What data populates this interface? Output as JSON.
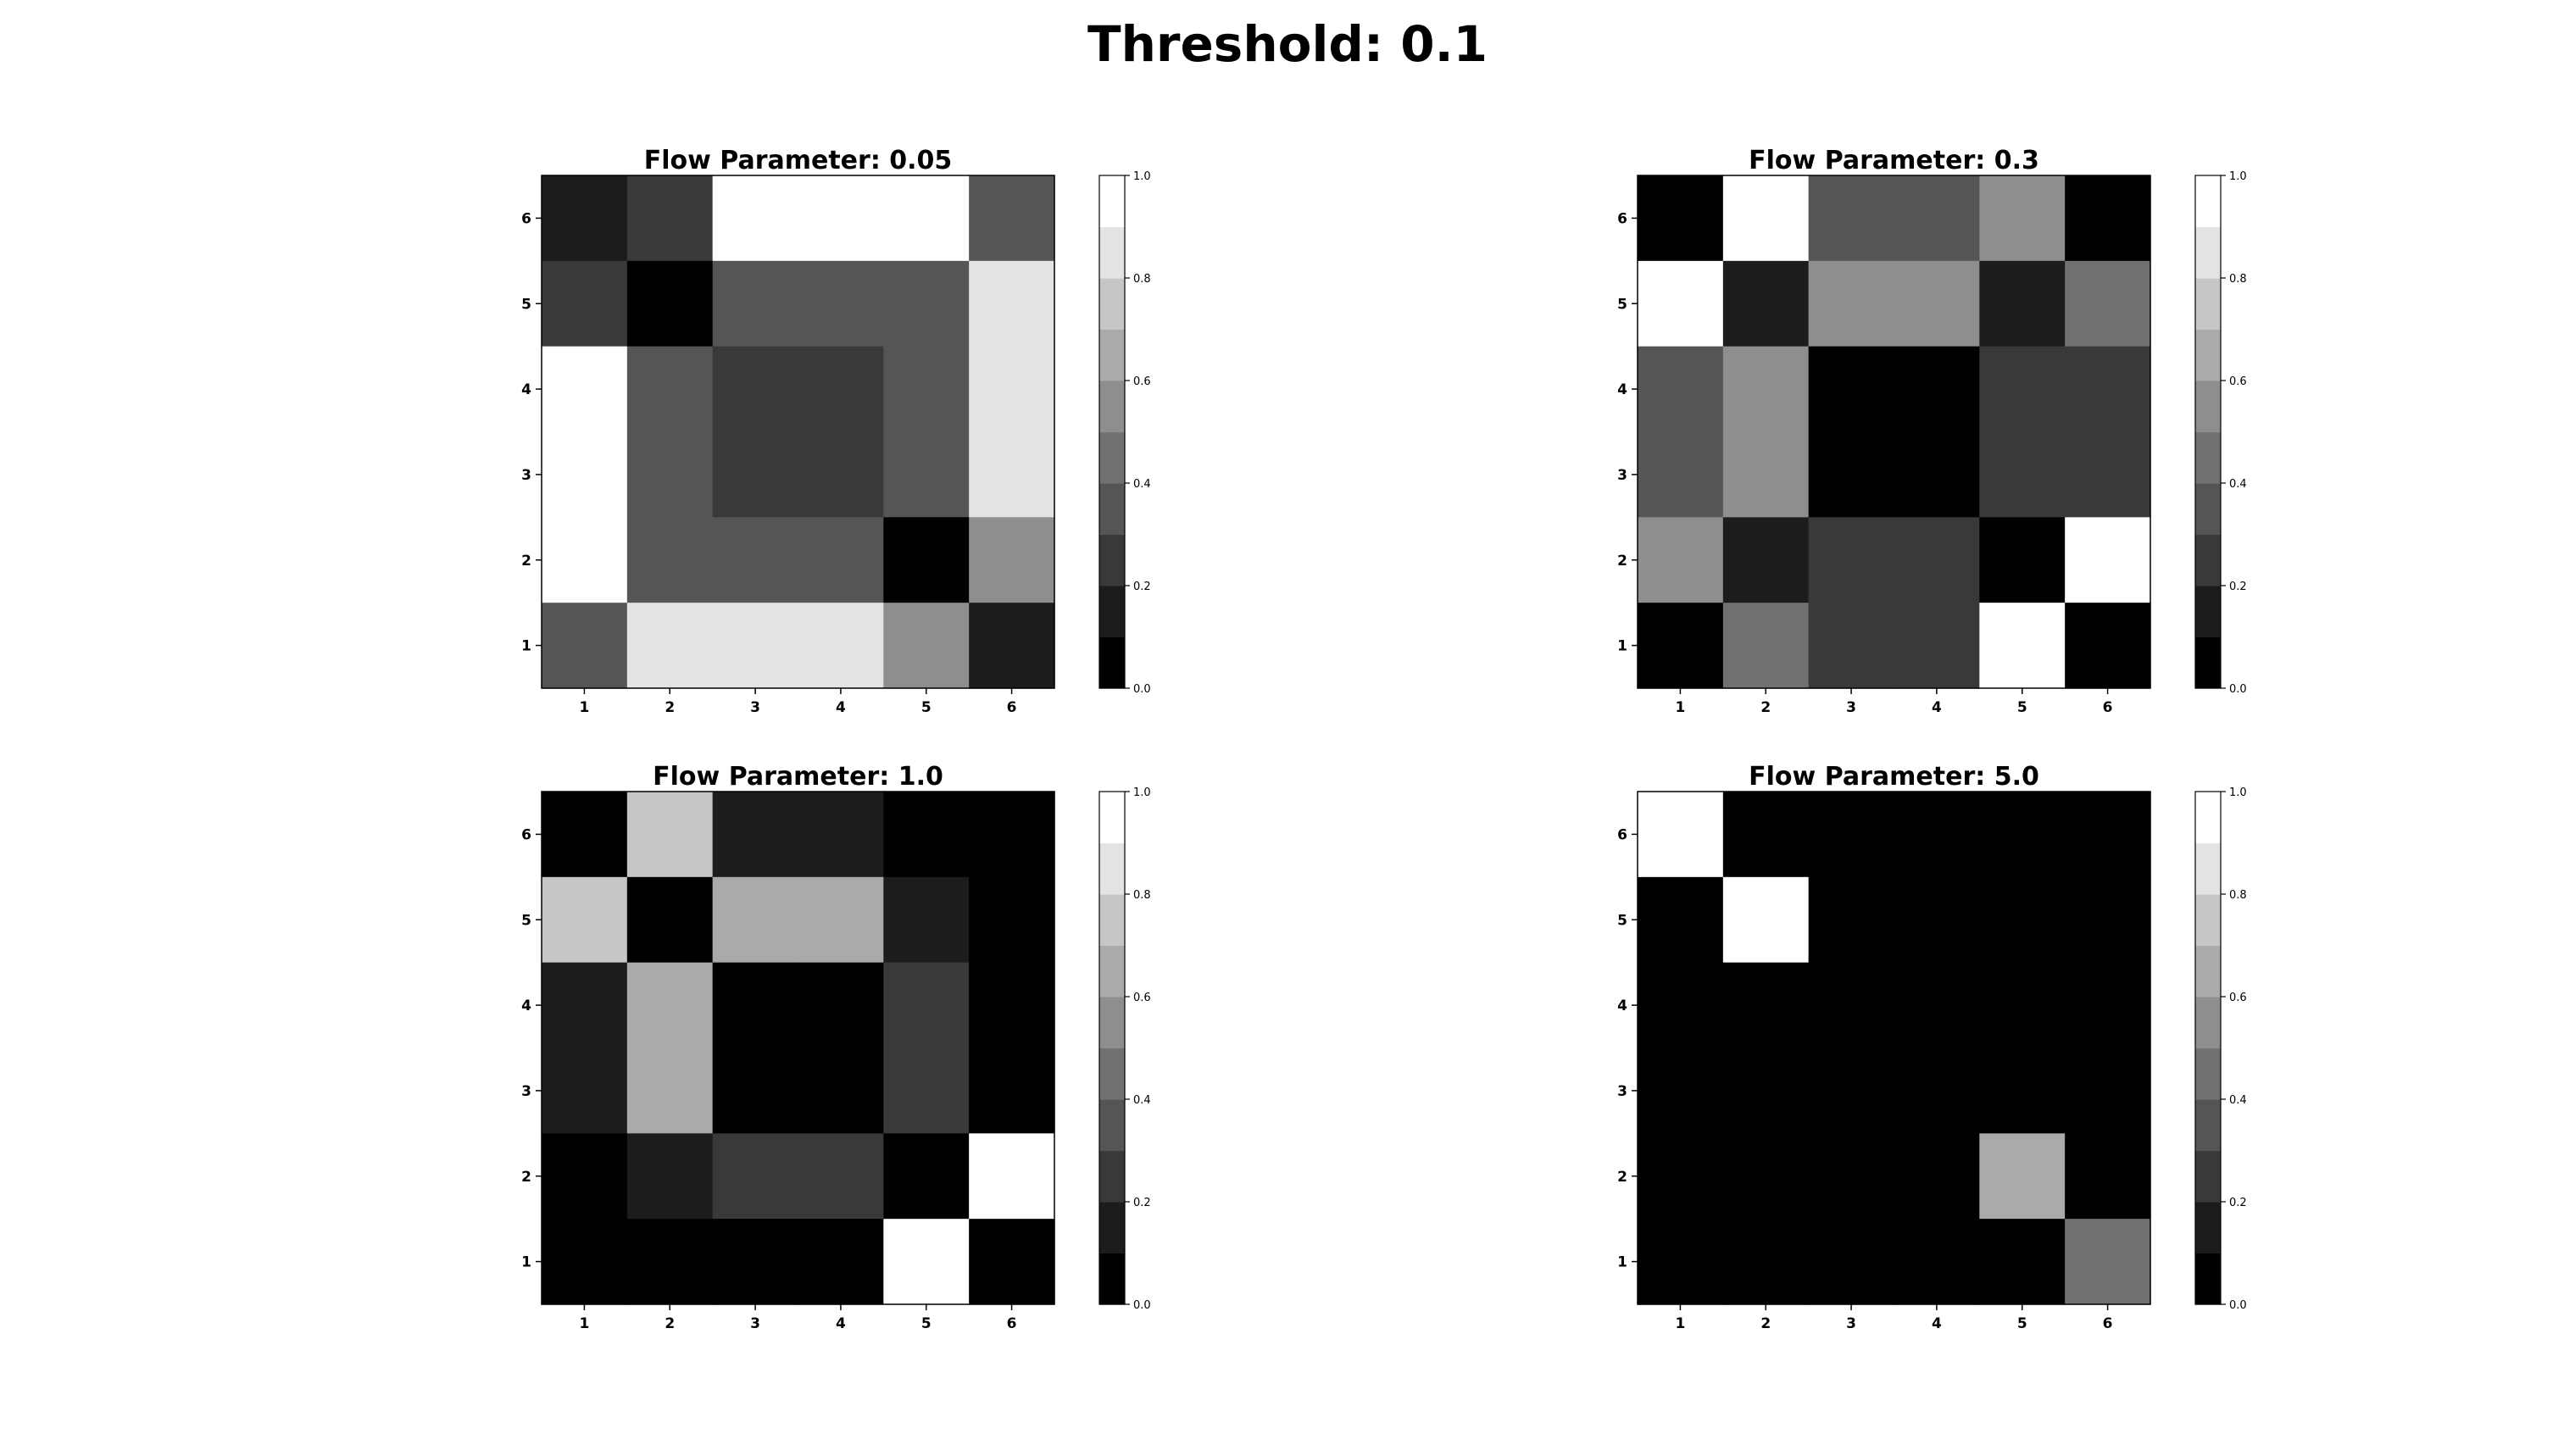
{
  "suptitle": "Threshold: 0.1",
  "chart_data": [
    {
      "type": "heatmap",
      "title": "Flow Parameter: 0.05",
      "xlabel": "",
      "ylabel": "",
      "x_categories": [
        "1",
        "2",
        "3",
        "4",
        "5",
        "6"
      ],
      "y_categories": [
        "1",
        "2",
        "3",
        "4",
        "5",
        "6"
      ],
      "colormap": "gray (10 levels)",
      "colorbar": {
        "min": 0.0,
        "max": 1.0,
        "ticks": [
          "0.0",
          "0.2",
          "0.4",
          "0.6",
          "0.8",
          "1.0"
        ]
      },
      "rows_top_to_bottom": [
        [
          0.1,
          0.2,
          1.0,
          1.0,
          1.0,
          0.3
        ],
        [
          0.2,
          0.0,
          0.3,
          0.3,
          0.3,
          0.8
        ],
        [
          1.0,
          0.3,
          0.2,
          0.2,
          0.3,
          0.8
        ],
        [
          1.0,
          0.3,
          0.2,
          0.2,
          0.3,
          0.8
        ],
        [
          1.0,
          0.3,
          0.3,
          0.3,
          0.0,
          0.5
        ],
        [
          0.3,
          0.8,
          0.8,
          0.8,
          0.5,
          0.1
        ]
      ]
    },
    {
      "type": "heatmap",
      "title": "Flow Parameter: 0.3",
      "xlabel": "",
      "ylabel": "",
      "x_categories": [
        "1",
        "2",
        "3",
        "4",
        "5",
        "6"
      ],
      "y_categories": [
        "1",
        "2",
        "3",
        "4",
        "5",
        "6"
      ],
      "colormap": "gray (10 levels)",
      "colorbar": {
        "min": 0.0,
        "max": 1.0,
        "ticks": [
          "0.0",
          "0.2",
          "0.4",
          "0.6",
          "0.8",
          "1.0"
        ]
      },
      "rows_top_to_bottom": [
        [
          0.0,
          1.0,
          0.3,
          0.3,
          0.5,
          0.0
        ],
        [
          1.0,
          0.1,
          0.5,
          0.5,
          0.1,
          0.4
        ],
        [
          0.3,
          0.5,
          0.0,
          0.0,
          0.2,
          0.2
        ],
        [
          0.3,
          0.5,
          0.0,
          0.0,
          0.2,
          0.2
        ],
        [
          0.5,
          0.1,
          0.2,
          0.2,
          0.0,
          1.0
        ],
        [
          0.0,
          0.4,
          0.2,
          0.2,
          1.0,
          0.0
        ]
      ]
    },
    {
      "type": "heatmap",
      "title": "Flow Parameter: 1.0",
      "xlabel": "",
      "ylabel": "",
      "x_categories": [
        "1",
        "2",
        "3",
        "4",
        "5",
        "6"
      ],
      "y_categories": [
        "1",
        "2",
        "3",
        "4",
        "5",
        "6"
      ],
      "colormap": "gray (10 levels)",
      "colorbar": {
        "min": 0.0,
        "max": 1.0,
        "ticks": [
          "0.0",
          "0.2",
          "0.4",
          "0.6",
          "0.8",
          "1.0"
        ]
      },
      "rows_top_to_bottom": [
        [
          0.0,
          0.7,
          0.1,
          0.1,
          0.0,
          0.0
        ],
        [
          0.7,
          0.0,
          0.6,
          0.6,
          0.1,
          0.0
        ],
        [
          0.1,
          0.6,
          0.0,
          0.0,
          0.2,
          0.0
        ],
        [
          0.1,
          0.6,
          0.0,
          0.0,
          0.2,
          0.0
        ],
        [
          0.0,
          0.1,
          0.2,
          0.2,
          0.0,
          1.0
        ],
        [
          0.0,
          0.0,
          0.0,
          0.0,
          1.0,
          0.0
        ]
      ]
    },
    {
      "type": "heatmap",
      "title": "Flow Parameter: 5.0",
      "xlabel": "",
      "ylabel": "",
      "x_categories": [
        "1",
        "2",
        "3",
        "4",
        "5",
        "6"
      ],
      "y_categories": [
        "1",
        "2",
        "3",
        "4",
        "5",
        "6"
      ],
      "colormap": "gray (10 levels)",
      "colorbar": {
        "min": 0.0,
        "max": 1.0,
        "ticks": [
          "0.0",
          "0.2",
          "0.4",
          "0.6",
          "0.8",
          "1.0"
        ]
      },
      "rows_top_to_bottom": [
        [
          1.0,
          0.0,
          0.0,
          0.0,
          0.0,
          0.0
        ],
        [
          0.0,
          1.0,
          0.0,
          0.0,
          0.0,
          0.0
        ],
        [
          0.0,
          0.0,
          0.0,
          0.0,
          0.0,
          0.0
        ],
        [
          0.0,
          0.0,
          0.0,
          0.0,
          0.0,
          0.0
        ],
        [
          0.0,
          0.0,
          0.0,
          0.0,
          0.6,
          0.0
        ],
        [
          0.0,
          0.0,
          0.0,
          0.0,
          0.0,
          0.4
        ]
      ]
    }
  ]
}
